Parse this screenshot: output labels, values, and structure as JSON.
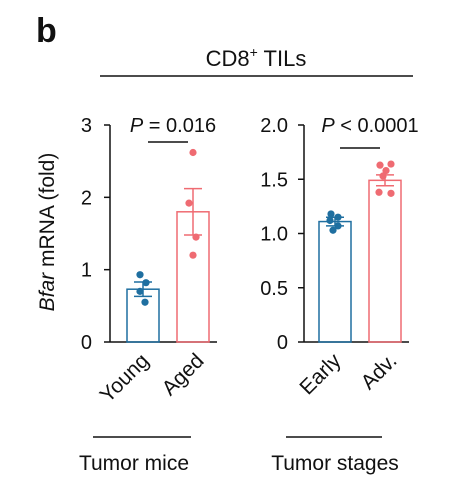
{
  "panel_letter": "b",
  "header": {
    "title_main": "CD8",
    "title_sup": "+",
    "title_tail": " TILs"
  },
  "colors": {
    "group_a": "#1f6fa0",
    "group_b": "#ef6b72",
    "axis": "#111111"
  },
  "chart_data": [
    {
      "type": "bar",
      "ylabel_italic": "Bfar",
      "ylabel_rest": " mRNA (fold)",
      "ylim": [
        0,
        3
      ],
      "yticks": [
        "0",
        "1",
        "2",
        "3"
      ],
      "ytick_values": [
        0,
        1,
        2,
        3
      ],
      "categories": [
        "Young",
        "Aged"
      ],
      "values": [
        0.73,
        1.8
      ],
      "errors": [
        0.1,
        0.32
      ],
      "points": [
        [
          0.93,
          0.82,
          0.7,
          0.55
        ],
        [
          2.62,
          1.92,
          1.45,
          1.2
        ]
      ],
      "pvalue": "P = 0.016",
      "xgroup_label": "Tumor mice",
      "grid": false,
      "legend": "none"
    },
    {
      "type": "bar",
      "ylim": [
        0,
        2
      ],
      "yticks": [
        "0",
        "0.5",
        "1.0",
        "1.5",
        "2.0"
      ],
      "ytick_values": [
        0,
        0.5,
        1.0,
        1.5,
        2.0
      ],
      "categories": [
        "Early",
        "Adv."
      ],
      "values": [
        1.11,
        1.49
      ],
      "errors": [
        0.04,
        0.05
      ],
      "points": [
        [
          1.18,
          1.15,
          1.12,
          1.07,
          1.03
        ],
        [
          1.63,
          1.64,
          1.58,
          1.53,
          1.38,
          1.37
        ]
      ],
      "pvalue": "P < 0.0001",
      "xgroup_label": "Tumor stages",
      "grid": false,
      "legend": "none"
    }
  ]
}
